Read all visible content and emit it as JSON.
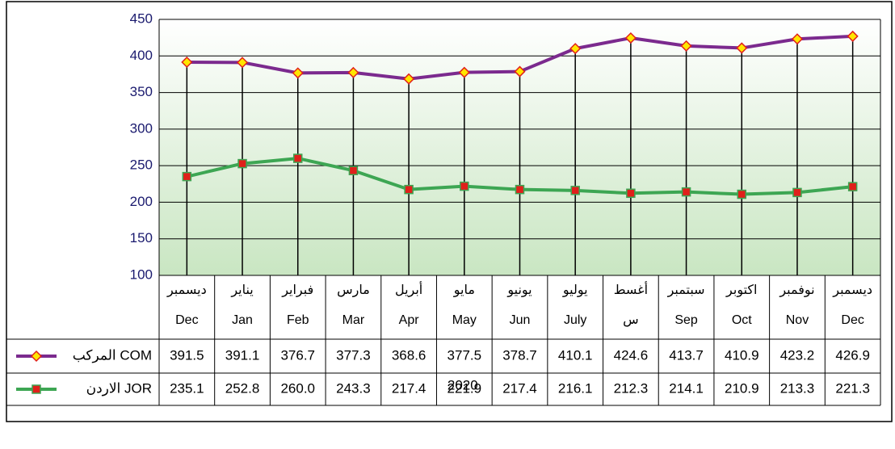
{
  "chart_data": {
    "type": "line",
    "categories": [
      [
        "ديسمبر",
        "Dec"
      ],
      [
        "يناير",
        "Jan"
      ],
      [
        "فبراير",
        "Feb"
      ],
      [
        "مارس",
        "Mar"
      ],
      [
        "أبريل",
        "Apr"
      ],
      [
        "مايو",
        "May"
      ],
      [
        "يونيو",
        "Jun"
      ],
      [
        "يوليو",
        "July"
      ],
      [
        "أغسط",
        "س"
      ],
      [
        "سبتمبر",
        "Sep"
      ],
      [
        "اكتوبر",
        "Oct"
      ],
      [
        "نوفمبر",
        "Nov"
      ],
      [
        "ديسمبر",
        "Dec"
      ]
    ],
    "series": [
      {
        "name": "المركب COM",
        "color": "#7b2a8e",
        "marker_fill": "#ffe600",
        "marker_stroke": "#e0201b",
        "marker": "diamond",
        "values": [
          391.5,
          391.1,
          376.7,
          377.3,
          368.6,
          377.5,
          378.7,
          410.1,
          424.6,
          413.7,
          410.9,
          423.2,
          426.9
        ]
      },
      {
        "name": "الاردن JOR",
        "color": "#3da653",
        "marker_fill": "#e0201b",
        "marker_stroke": "#3da653",
        "marker": "square",
        "values": [
          235.1,
          252.8,
          260.0,
          243.3,
          217.4,
          221.9,
          217.4,
          216.1,
          212.3,
          214.1,
          210.9,
          213.3,
          221.3
        ],
        "value_labels": [
          "235.1",
          "252.8",
          "260.0",
          "243.3",
          "217.4",
          "221.9",
          "217.4",
          "216.1",
          "212.3",
          "214.1",
          "210.9",
          "213.3",
          "221.3"
        ]
      }
    ],
    "year": "2020",
    "ylim": [
      100,
      450
    ],
    "yticks": [
      100,
      150,
      200,
      250,
      300,
      350,
      400,
      450
    ],
    "grid": true
  }
}
